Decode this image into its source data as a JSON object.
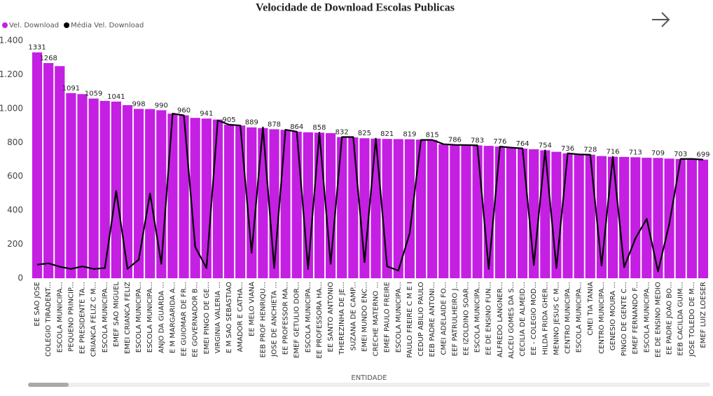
{
  "chart_data": {
    "type": "combo",
    "title": "Velocidade de Download Escolas Publicas",
    "x_label": "ENTIDADE",
    "categories": [
      "EE SAO JOSE",
      "COLEGIO TIRADENT...",
      "ESCOLA MUNICIPA...",
      "PEQUENO PRINCIP...",
      "EE PRESIDENTE TA...",
      "CRIANCA FELIZ C M...",
      "ESCOLA MUNICIPA...",
      "EMEF SAO MIGUEL",
      "EMEI CRIANCA FELIZ",
      "ESCOLA MUNICIPA...",
      "ESCOLA MUNICIPA...",
      "ANJO DA GUARDA ...",
      "E M MARGARIDA A...",
      "EE GUIOMAR DE FR...",
      "EE GOVERNADOR B...",
      "EMEI PINGO DE GE...",
      "VIRGINIA VALERIA ...",
      "E M SAO SEBASTIAO",
      "AMADOR E CATHA...",
      "EE MELO VIANA",
      "EEB PROF HENRIQU...",
      "JOSE DE ANCHIETA ...",
      "EE PROFESSOR MA...",
      "EMEF GETULIO DOR...",
      "ESCOLA MUNICIPA...",
      "EE PROFESSORA HA...",
      "EE SANTO ANTONIO",
      "THEREZINHA DE JE...",
      "SUZANA DE CAMP...",
      "EMEI MUNDO ENC...",
      "CRECHE MATERNO ...",
      "EMEF PAULO FREIRE",
      "ESCOLA MUNICIPA...",
      "PAULO FREIRE C M E I",
      "CEDUP ABILIO PAULO",
      "EEB PADRE ANTONI...",
      "CMEI ADELAIDE FO...",
      "EEF PATRULHEIRO J...",
      "EE IZOLDINO SOAR...",
      "ESCOLA MUNICIPA...",
      "EE DE ENSINO FUN...",
      "ALFREDO LANGNER...",
      "ALCEU GOMES DA S...",
      "CECILIA DE ALMEID...",
      "EE - COLEGIO MOD...",
      "HILDA FRIDA GHER...",
      "MENINO JESUS C M...",
      "CENTRO MUNICIPA...",
      "ESCOLA MUNICIPA...",
      "CMEI TIA TANIA",
      "CENTRO MUNICIPA...",
      "GENESIO MOURA ...",
      "PINGO DE GENTE C...",
      "EMEF FERNANDO F...",
      "ESCOLA MUNICIPA...",
      "EE DE ENSINO MEDIO",
      "EE PADRE JOAO BO...",
      "EEB CACILDA GUIM...",
      "JOSE TOLEDO DE M...",
      "EMEF LUIZ LOESER"
    ],
    "series": [
      {
        "name": "Vel. Download",
        "type": "bar",
        "color": "#c41fe3",
        "values": [
          1331,
          1268,
          1250,
          1091,
          1085,
          1059,
          1045,
          1041,
          1020,
          998,
          997,
          990,
          970,
          960,
          945,
          941,
          935,
          905,
          900,
          889,
          885,
          878,
          875,
          864,
          860,
          858,
          855,
          832,
          830,
          825,
          823,
          821,
          820,
          819,
          817,
          815,
          790,
          786,
          785,
          783,
          780,
          776,
          770,
          764,
          760,
          754,
          745,
          736,
          730,
          728,
          720,
          716,
          715,
          713,
          710,
          709,
          705,
          703,
          700,
          699
        ],
        "value_labels": [
          "1331",
          "1268",
          null,
          "1091",
          null,
          "1059",
          null,
          "1041",
          null,
          "998",
          null,
          "990",
          null,
          "960",
          null,
          "941",
          null,
          "905",
          null,
          "889",
          null,
          "878",
          null,
          "864",
          null,
          "858",
          null,
          "832",
          null,
          "825",
          null,
          "821",
          null,
          "819",
          null,
          "815",
          null,
          "786",
          null,
          "783",
          null,
          "776",
          null,
          "764",
          null,
          "754",
          null,
          "736",
          null,
          "728",
          null,
          "716",
          null,
          "713",
          null,
          "709",
          null,
          "703",
          null,
          "699"
        ]
      },
      {
        "name": "Média Vel. Download",
        "type": "line",
        "color": "#000000",
        "values": [
          80,
          88,
          68,
          55,
          70,
          55,
          60,
          515,
          55,
          110,
          500,
          85,
          970,
          960,
          185,
          60,
          930,
          905,
          900,
          150,
          889,
          60,
          875,
          864,
          55,
          858,
          85,
          832,
          832,
          95,
          823,
          70,
          45,
          265,
          815,
          815,
          790,
          786,
          785,
          783,
          55,
          776,
          770,
          765,
          78,
          754,
          60,
          736,
          730,
          728,
          75,
          716,
          65,
          235,
          350,
          40,
          320,
          703,
          703,
          699
        ]
      }
    ],
    "ylim": [
      0,
      1400
    ],
    "yticks": [
      0,
      200,
      400,
      600,
      800,
      {
        "value": 1000,
        "label": "1.000"
      },
      {
        "value": 1200,
        "label": "1.200"
      },
      {
        "value": 1400,
        "label": "1.400"
      }
    ],
    "grid": false,
    "legend": "top-left"
  }
}
